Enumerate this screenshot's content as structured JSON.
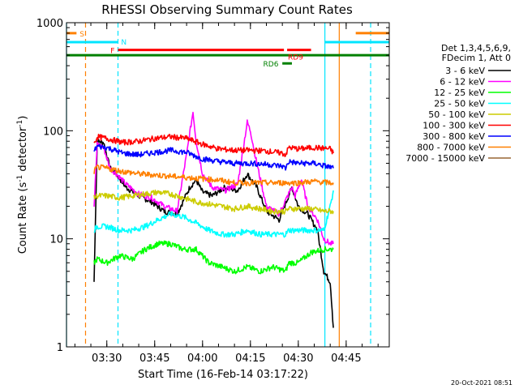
{
  "chart_data": {
    "type": "line",
    "title": "RHESSI Observing Summary Count Rates",
    "xlabel": "Start Time (16-Feb-14 03:17:22)",
    "ylabel_main": "Count Rate (s",
    "ylabel_sup": "-1",
    "ylabel_mid": " detector",
    "ylabel_end": ")",
    "y_scale": "log",
    "ylim": [
      1,
      1000
    ],
    "xlim": [
      "03:17:22",
      "04:58:30"
    ],
    "x_ticks": [
      "03:30",
      "03:45",
      "04:00",
      "04:15",
      "04:30",
      "04:45"
    ],
    "y_ticks": [
      "1",
      "10",
      "100",
      "1000"
    ],
    "legend_header": [
      "Det 1,3,4,5,6,9,",
      "FDecim 1, Att 0"
    ],
    "legend_placement": "right",
    "timestamp": "20-Oct-2021 08:51",
    "flag_labels": {
      "S": "S",
      "N": "N",
      "F": "F",
      "RD9": "RD9",
      "RD6": "RD6"
    },
    "colors": {
      "axis": "#000000",
      "flag_s": "#ff8000",
      "flag_n": "#00e5ff",
      "flag_f": "#ff0000",
      "flag_rd9": "#ff0000",
      "flag_rd6": "#008000",
      "baseline": "#008000"
    },
    "vertical_markers": [
      {
        "time": "03:17:22",
        "color": "#00e5ff",
        "style": "solid"
      },
      {
        "time": "03:23:20",
        "color": "#ff8000",
        "style": "dashed"
      },
      {
        "time": "03:33:30",
        "color": "#00e5ff",
        "style": "dashed"
      },
      {
        "time": "04:38:20",
        "color": "#00e5ff",
        "style": "solid"
      },
      {
        "time": "04:42:50",
        "color": "#ff8000",
        "style": "solid"
      },
      {
        "time": "04:52:40",
        "color": "#00e5ff",
        "style": "dashed"
      }
    ],
    "series": [
      {
        "name": "3 - 6 keV",
        "color": "#000000",
        "x": [
          "03:26",
          "03:27",
          "03:29",
          "03:31",
          "03:33",
          "03:36",
          "03:40",
          "03:44",
          "03:48",
          "03:52",
          "03:56",
          "03:58",
          "04:00",
          "04:03",
          "04:07",
          "04:11",
          "04:14",
          "04:17",
          "04:20",
          "04:24",
          "04:28",
          "04:30",
          "04:33",
          "04:36",
          "04:38",
          "04:40",
          "04:41"
        ],
        "y": [
          4,
          80,
          78,
          45,
          40,
          30,
          25,
          22,
          18,
          17,
          30,
          35,
          27,
          25,
          30,
          28,
          40,
          30,
          18,
          15,
          30,
          20,
          17,
          12,
          5,
          4,
          1.5
        ]
      },
      {
        "name": "6 - 12 keV",
        "color": "#ff00ff",
        "x": [
          "03:26",
          "03:27",
          "03:29",
          "03:31",
          "03:33",
          "03:36",
          "03:40",
          "03:44",
          "03:48",
          "03:52",
          "03:55",
          "03:57",
          "03:58",
          "04:00",
          "04:03",
          "04:07",
          "04:11",
          "04:14",
          "04:15",
          "04:17",
          "04:20",
          "04:24",
          "04:28",
          "04:29",
          "04:31",
          "04:33",
          "04:36",
          "04:38",
          "04:40",
          "04:41"
        ],
        "y": [
          20,
          75,
          70,
          45,
          40,
          32,
          26,
          24,
          20,
          18,
          60,
          150,
          80,
          40,
          30,
          28,
          32,
          120,
          100,
          50,
          20,
          17,
          30,
          25,
          35,
          20,
          15,
          10,
          9,
          9
        ]
      },
      {
        "name": "12 - 25 keV",
        "color": "#00ff00",
        "x": [
          "03:26",
          "03:27",
          "03:30",
          "03:34",
          "03:38",
          "03:42",
          "03:46",
          "03:50",
          "03:54",
          "03:58",
          "04:02",
          "04:06",
          "04:10",
          "04:14",
          "04:18",
          "04:22",
          "04:26",
          "04:27",
          "04:30",
          "04:34",
          "04:38",
          "04:40",
          "04:41"
        ],
        "y": [
          6,
          6.5,
          6,
          7,
          6.5,
          8,
          9,
          9,
          8,
          8,
          6,
          5.5,
          5,
          5.5,
          5,
          5.5,
          5,
          6,
          6,
          7.5,
          8,
          8,
          8
        ]
      },
      {
        "name": "25 - 50 keV",
        "color": "#00ffff",
        "x": [
          "03:26",
          "03:27",
          "03:30",
          "03:34",
          "03:38",
          "03:42",
          "03:46",
          "03:50",
          "03:54",
          "03:58",
          "04:02",
          "04:06",
          "04:10",
          "04:14",
          "04:18",
          "04:22",
          "04:26",
          "04:27",
          "04:30",
          "04:34",
          "04:38",
          "04:40",
          "04:41"
        ],
        "y": [
          12,
          13,
          13,
          12,
          12,
          13,
          15,
          17,
          16,
          14,
          12,
          11,
          11,
          12,
          11,
          11,
          11,
          12,
          12,
          12,
          12,
          20,
          28
        ]
      },
      {
        "name": "50 - 100 keV",
        "color": "#cccc00",
        "x": [
          "03:26",
          "03:27",
          "03:30",
          "03:34",
          "03:38",
          "03:42",
          "03:46",
          "03:50",
          "03:54",
          "03:58",
          "04:02",
          "04:06",
          "04:10",
          "04:14",
          "04:18",
          "04:22",
          "04:26",
          "04:27",
          "04:30",
          "04:34",
          "04:38",
          "04:40",
          "04:41"
        ],
        "y": [
          24,
          25,
          25,
          24,
          25,
          26,
          27,
          26,
          24,
          22,
          21,
          20,
          19,
          20,
          19,
          18,
          18,
          19,
          19,
          19,
          18,
          18,
          18
        ]
      },
      {
        "name": "100 - 300 keV",
        "color": "#ff0000",
        "x": [
          "03:26",
          "03:27",
          "03:30",
          "03:35",
          "03:40",
          "03:45",
          "03:50",
          "03:55",
          "04:00",
          "04:05",
          "04:10",
          "04:15",
          "04:20",
          "04:25",
          "04:26",
          "04:27",
          "04:30",
          "04:35",
          "04:40",
          "04:41"
        ],
        "y": [
          75,
          88,
          85,
          78,
          80,
          85,
          88,
          85,
          75,
          68,
          66,
          66,
          65,
          62,
          60,
          70,
          68,
          70,
          68,
          62
        ]
      },
      {
        "name": "300 - 800 keV",
        "color": "#0000ff",
        "x": [
          "03:26",
          "03:27",
          "03:30",
          "03:35",
          "03:40",
          "03:45",
          "03:50",
          "03:55",
          "04:00",
          "04:05",
          "04:10",
          "04:15",
          "04:20",
          "04:25",
          "04:26",
          "04:27",
          "04:30",
          "04:35",
          "04:40",
          "04:41"
        ],
        "y": [
          65,
          72,
          70,
          62,
          60,
          63,
          66,
          63,
          55,
          52,
          50,
          50,
          49,
          47,
          45,
          52,
          50,
          50,
          46,
          45
        ]
      },
      {
        "name": "800 - 7000 keV",
        "color": "#ff8000",
        "x": [
          "03:26",
          "03:27",
          "03:30",
          "03:35",
          "03:40",
          "03:45",
          "03:50",
          "03:55",
          "04:00",
          "04:05",
          "04:10",
          "04:15",
          "04:20",
          "04:25",
          "04:30",
          "04:35",
          "04:40",
          "04:41"
        ],
        "y": [
          42,
          46,
          45,
          42,
          40,
          39,
          38,
          37,
          36,
          35,
          33,
          33,
          33,
          33,
          33,
          34,
          33,
          33
        ]
      },
      {
        "name": "7000 - 15000 keV",
        "color": "#996633",
        "x": [],
        "y": []
      }
    ],
    "flags": [
      {
        "label": "S",
        "color": "#ff8000",
        "segments": [
          [
            "03:17:22",
            "03:20:30"
          ],
          [
            "04:48:00",
            "04:58:30"
          ]
        ],
        "value": 800
      },
      {
        "label": "N",
        "color": "#00e5ff",
        "segments": [
          [
            "03:17:22",
            "03:33:30"
          ],
          [
            "04:38:20",
            "04:58:30"
          ]
        ],
        "value": 660
      },
      {
        "label": "F",
        "color": "#ff0000",
        "segments": [
          [
            "03:33:30",
            "04:25:30"
          ]
        ],
        "value": 560
      },
      {
        "label": "RD9",
        "color": "#ff0000",
        "segments": [
          [
            "04:26:30",
            "04:34:00"
          ]
        ],
        "value": 560
      },
      {
        "label": "RD6",
        "color": "#008000",
        "segments": [
          [
            "04:25:00",
            "04:28:00"
          ]
        ],
        "value": 420
      },
      {
        "label": "",
        "color": "#008000",
        "segments": [
          [
            "03:17:22",
            "04:58:30"
          ]
        ],
        "value": 500
      }
    ]
  }
}
